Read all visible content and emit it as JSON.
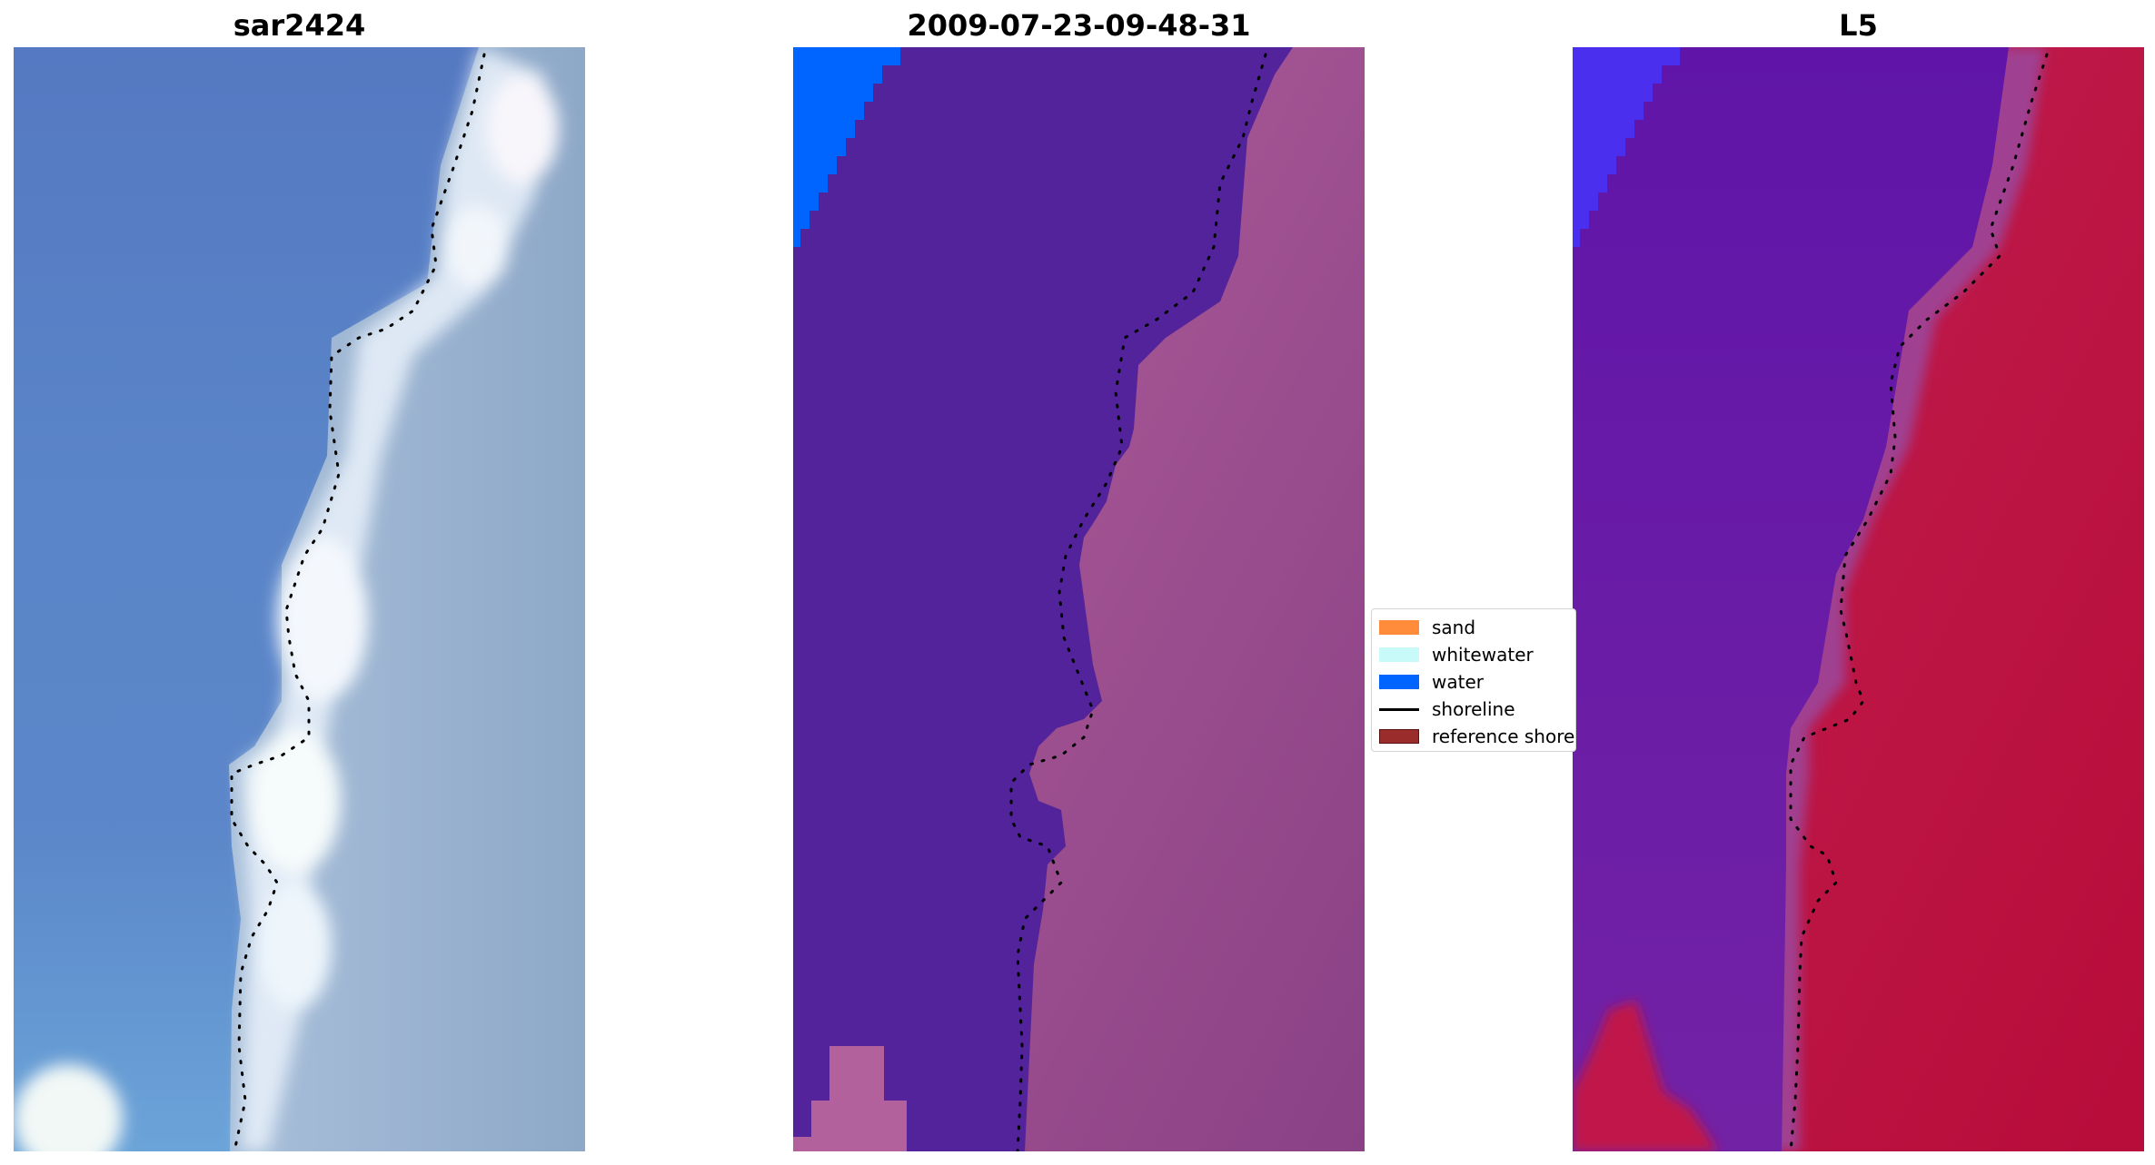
{
  "panels": [
    {
      "title": "sar2424",
      "kind": "rgb-satellite"
    },
    {
      "title": "2009-07-23-09-48-31",
      "kind": "classified-overlay"
    },
    {
      "title": "L5",
      "kind": "index-map"
    }
  ],
  "legend": {
    "items": [
      {
        "label": "sand",
        "type": "patch",
        "color": "#ff8c3b"
      },
      {
        "label": "whitewater",
        "type": "patch",
        "color": "#c8fafa"
      },
      {
        "label": "water",
        "type": "patch",
        "color": "#0064ff"
      },
      {
        "label": "shoreline",
        "type": "line",
        "color": "#000000"
      },
      {
        "label": "reference shoreline",
        "type": "patch",
        "color": "#9b2c2c",
        "border": "#5a1010"
      }
    ]
  },
  "colors": {
    "sar_water": "#5a7fc4",
    "sar_foam": "#eef4fa",
    "sar_land": "#8fa8c6",
    "class_water_dark": "#52239a",
    "class_water_bright": "#0064ff",
    "class_land": "#9a5092",
    "index_water": "#6a1aa8",
    "index_land": "#c01040",
    "shoreline_dots": "#000000"
  }
}
